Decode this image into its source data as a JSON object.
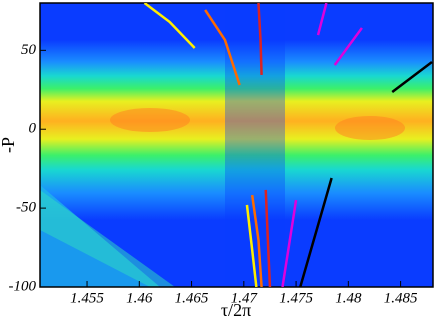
{
  "chart_data": {
    "type": "line",
    "x_label": "τ/2π",
    "y_label": "-P",
    "xlim": [
      1.4505,
      1.4881
    ],
    "ylim": [
      -100,
      80
    ],
    "xticks": [
      1.455,
      1.46,
      1.465,
      1.47,
      1.475,
      1.48,
      1.485
    ],
    "yticks": [
      -100,
      -50,
      0,
      50
    ],
    "series": [
      {
        "color": "#ffee00",
        "x": [
          1.4605,
          1.4629,
          1.4653,
          null,
          1.4703,
          1.4708,
          1.4712
        ],
        "values": [
          80,
          68,
          51.5,
          null,
          -48,
          -76.5,
          -100
        ]
      },
      {
        "color": "#ff6a00",
        "x": [
          1.4663,
          1.4682,
          1.4696,
          null,
          1.4708,
          1.4714,
          1.4717
        ],
        "values": [
          75.6,
          56.5,
          28,
          null,
          -41.7,
          -70.2,
          -100
        ]
      },
      {
        "color": "#dd2222",
        "x": [
          1.4714,
          1.4716,
          1.4717,
          null,
          1.4721,
          1.4723,
          1.4725
        ],
        "values": [
          80,
          56.5,
          34.4,
          null,
          -38.5,
          -70.2,
          -100
        ]
      },
      {
        "color": "#dd00dd",
        "x": [
          1.4779,
          1.4771,
          null,
          1.4787,
          1.4813,
          null,
          1.475,
          1.4737
        ],
        "values": [
          80,
          59.7,
          null,
          40.7,
          64.2,
          null,
          -44.9,
          -100
        ]
      },
      {
        "color": "#000000",
        "x": [
          1.4842,
          1.488,
          null,
          1.4784,
          1.4754
        ],
        "values": [
          23.6,
          42.6,
          null,
          -30.9,
          -100
        ]
      }
    ]
  }
}
